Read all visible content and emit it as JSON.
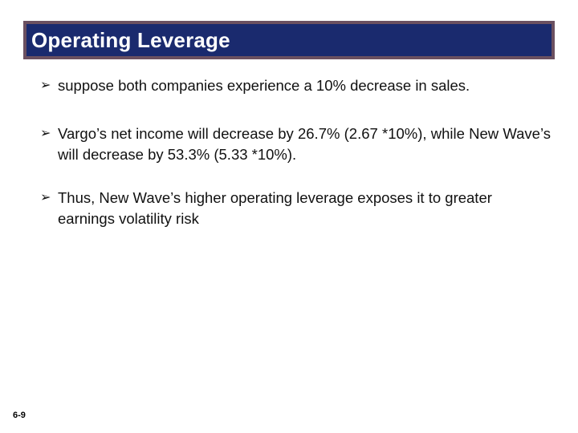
{
  "slide": {
    "title": "Operating Leverage",
    "bullets": [
      {
        "icon": "arrow-bullet-icon",
        "text": "suppose both companies experience a 10% decrease in sales."
      },
      {
        "icon": "arrow-bullet-icon",
        "text": "Vargo’s net income will decrease by 26.7% (2.67 *10%), while New Wave’s will decrease by 53.3% (5.33 *10%)."
      },
      {
        "icon": "arrow-bullet-icon",
        "text": "Thus, New Wave’s higher operating leverage exposes it to greater earnings volatility risk"
      }
    ],
    "slide_number": "6-9"
  },
  "colors": {
    "title_background": "#1a2a6e",
    "title_border": "#6b5060",
    "title_text": "#ffffff",
    "body_text": "#111111"
  }
}
